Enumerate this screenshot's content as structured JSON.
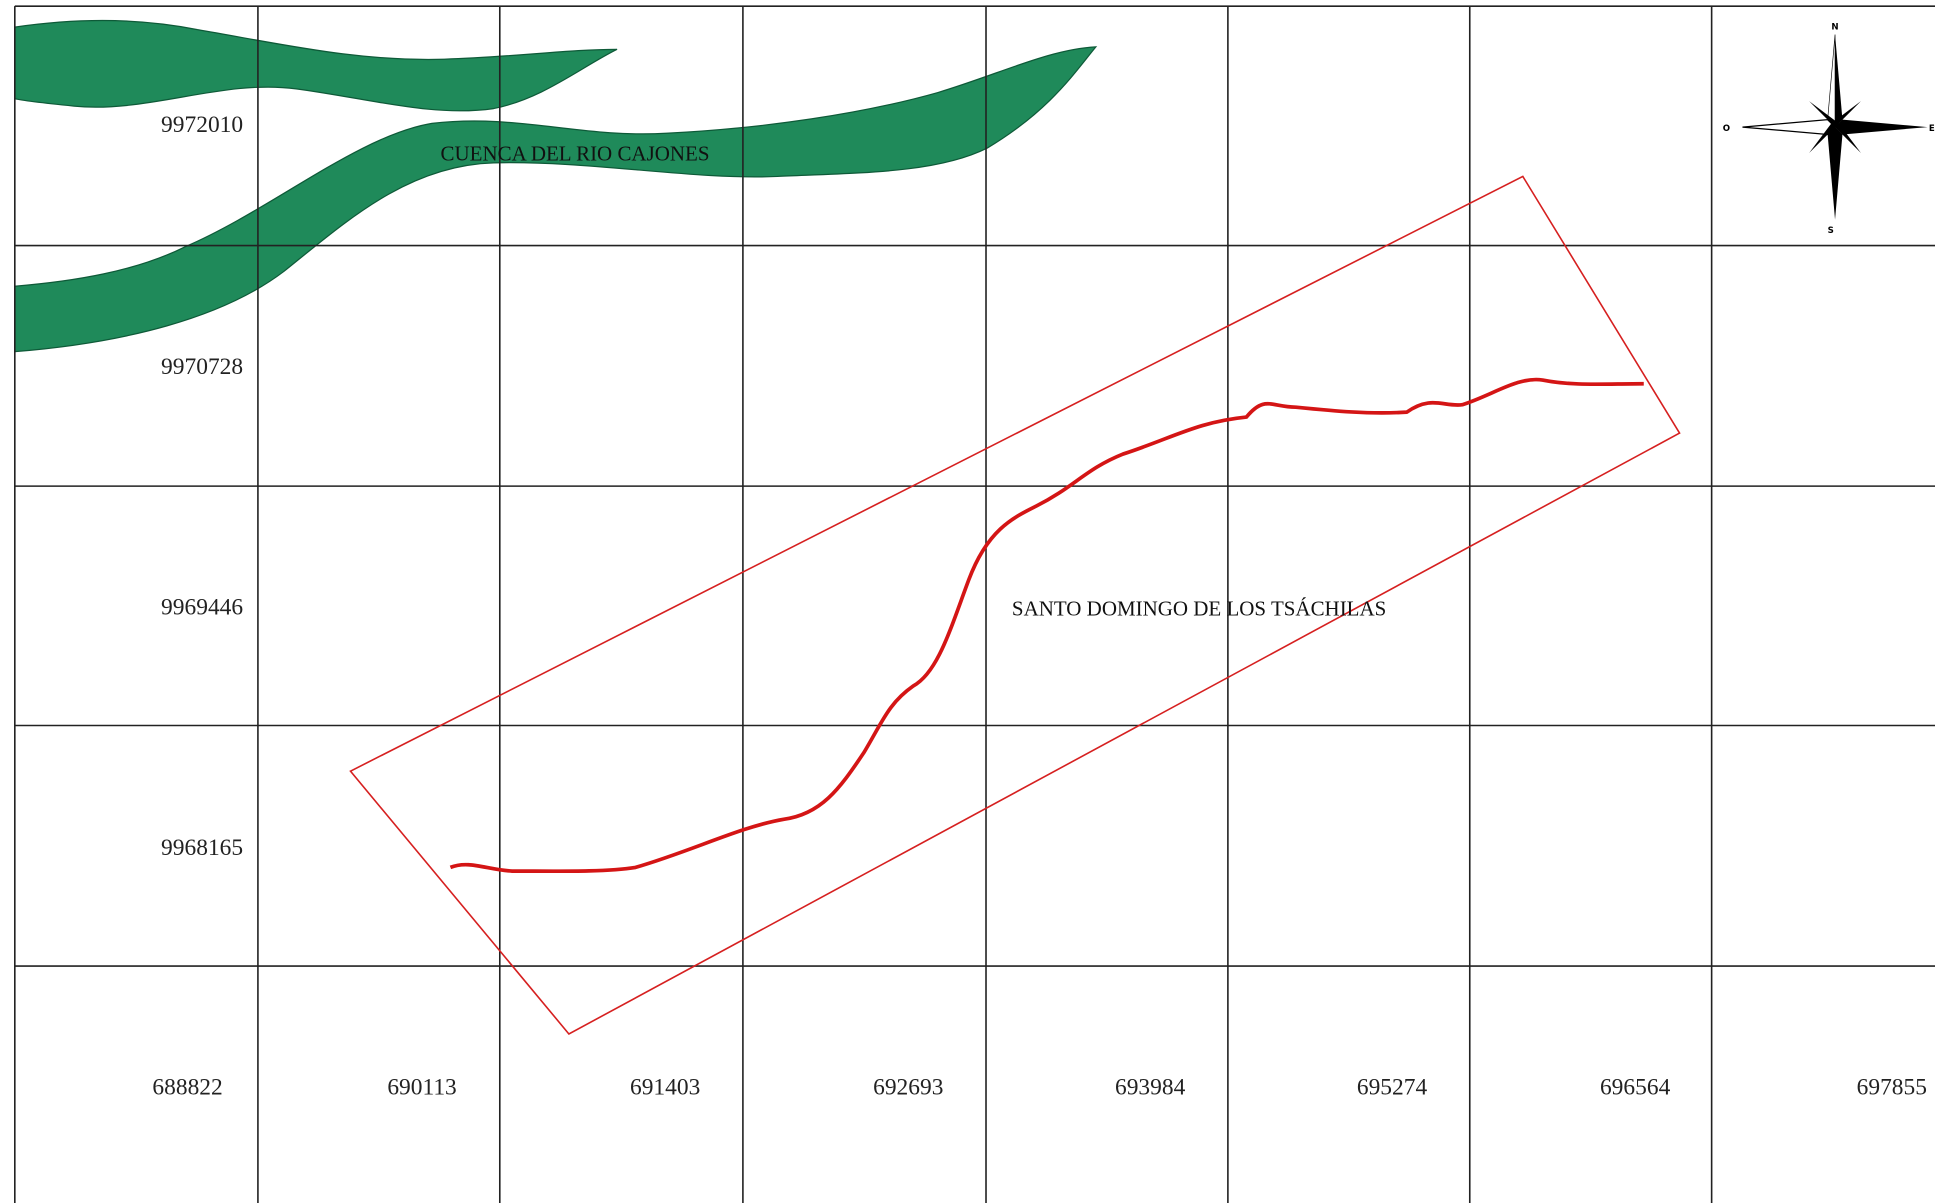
{
  "northing_labels": [
    9972010,
    9970728,
    9969446,
    9968165
  ],
  "easting_labels": [
    688822,
    690113,
    691403,
    692693,
    693984,
    695274,
    696564,
    697855
  ],
  "map_labels": {
    "river": "CUENCA DEL RIO CAJONES",
    "province": "SANTO DOMINGO DE LOS TSÁCHILAS"
  },
  "compass": {
    "north": "N",
    "south": "S",
    "east": "E",
    "west": "O"
  }
}
